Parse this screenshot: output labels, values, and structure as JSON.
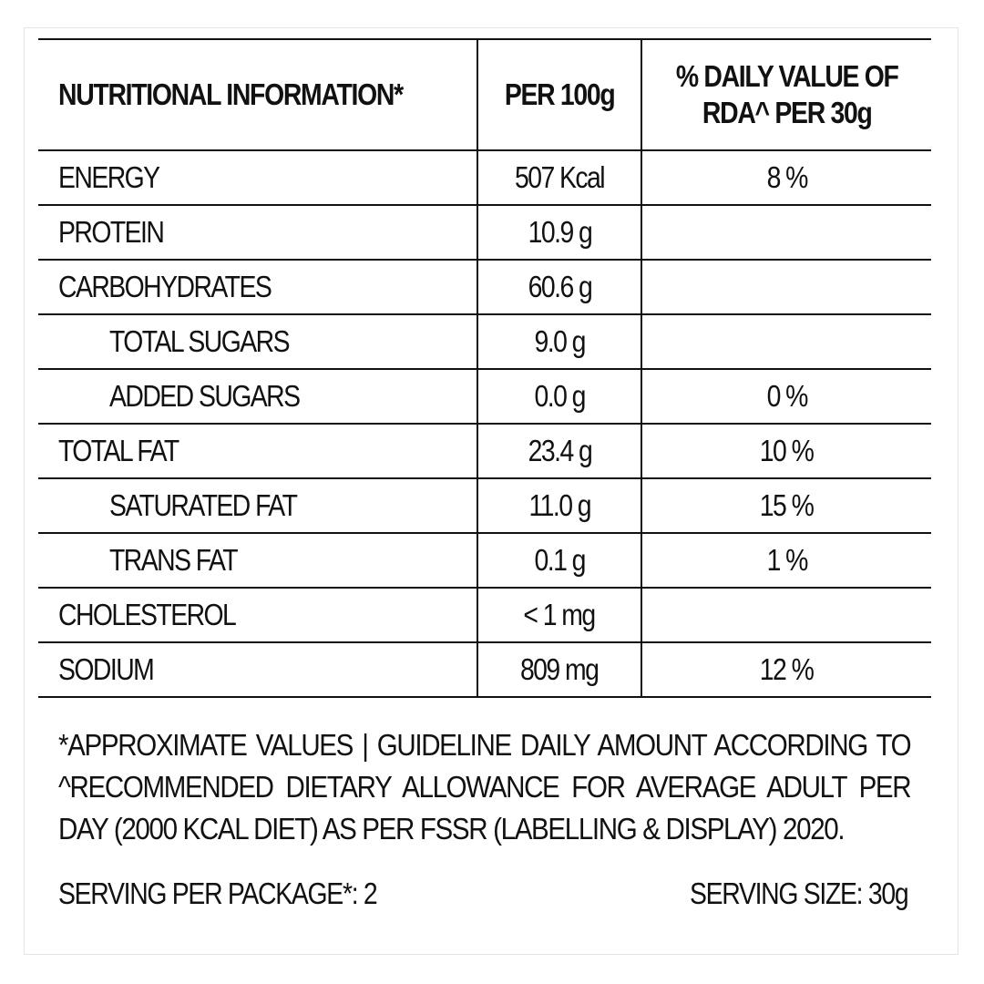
{
  "table": {
    "headers": {
      "name": "NUTRITIONAL INFORMATION*",
      "per100": "PER 100g",
      "dv_line1": "% DAILY VALUE OF",
      "dv_line2": "RDA^ PER 30g"
    },
    "rows": [
      {
        "name": "ENERGY",
        "per100": "507 Kcal",
        "dv": "8 %"
      },
      {
        "name": "PROTEIN",
        "per100": "10.9 g",
        "dv": ""
      },
      {
        "name": "CARBOHYDRATES",
        "per100": "60.6 g",
        "dv": ""
      },
      {
        "name": "TOTAL SUGARS",
        "per100": "9.0 g",
        "dv": ""
      },
      {
        "name": "ADDED SUGARS",
        "per100": "0.0 g",
        "dv": "0 %"
      },
      {
        "name": "TOTAL FAT",
        "per100": "23.4 g",
        "dv": "10 %"
      },
      {
        "name": "SATURATED FAT",
        "per100": "11.0 g",
        "dv": "15 %"
      },
      {
        "name": "TRANS FAT",
        "per100": "0.1 g",
        "dv": "1 %"
      },
      {
        "name": "CHOLESTEROL",
        "per100": "< 1 mg",
        "dv": ""
      },
      {
        "name": "SODIUM",
        "per100": "809 mg",
        "dv": "12 %"
      }
    ]
  },
  "footnote": "*APPROXIMATE VALUES | GUIDELINE DAILY AMOUNT ACCORDING TO ^RECOMMENDED DIETARY ALLOWANCE FOR AVERAGE ADULT PER DAY (2000 KCAL DIET) AS PER FSSR (LABELLING & DISPLAY) 2020.",
  "footer": {
    "servings_per_package": "SERVING PER PACKAGE*: 2",
    "serving_size": "SERVING SIZE: 30g"
  }
}
